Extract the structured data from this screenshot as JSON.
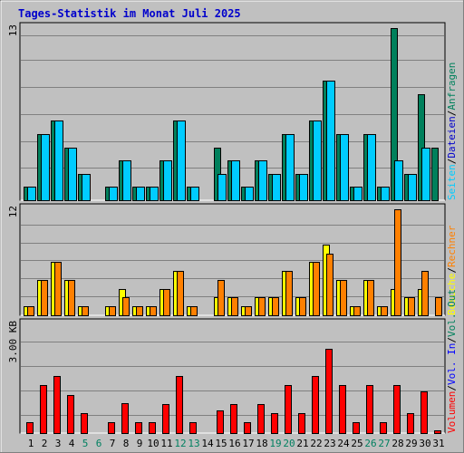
{
  "title": "Tages-Statistik im Monat Juli 2025",
  "colors": {
    "background": "#c0c0c0",
    "title": "#0000cc",
    "grid": "#808080",
    "anfragen": "#00805c",
    "seiten": "#00ccff",
    "dateien": "#0000cc",
    "besuche": "#ffff00",
    "rechner": "#ff8000",
    "volumen": "#ff0000",
    "vol_in": "#0000ff",
    "vol_out": "#00805c",
    "weekend_label": "#008060",
    "weekday_label": "#000000"
  },
  "top_panel": {
    "y_max_label": "13",
    "legend": [
      {
        "text": "Anfragen",
        "color": "#00805c"
      },
      {
        "text": "/",
        "color": "#000000"
      },
      {
        "text": "Dateien",
        "color": "#0000cc"
      },
      {
        "text": "/",
        "color": "#000000"
      },
      {
        "text": "Seiten",
        "color": "#00ccff"
      }
    ]
  },
  "middle_panel": {
    "y_max_label": "12",
    "legend": [
      {
        "text": "Besuche",
        "color": "#ffff00"
      },
      {
        "text": "/",
        "color": "#000000"
      },
      {
        "text": "Rechner",
        "color": "#ff8000"
      }
    ]
  },
  "bottom_panel": {
    "y_max_label": "3.00 KB",
    "legend": [
      {
        "text": "Volumen",
        "color": "#ff0000"
      },
      {
        "text": "/",
        "color": "#000000"
      },
      {
        "text": "Vol. In",
        "color": "#0000ff"
      },
      {
        "text": "/",
        "color": "#000000"
      },
      {
        "text": "Vol. Out",
        "color": "#00805c"
      }
    ]
  },
  "chart_data": [
    {
      "type": "bar",
      "title": "Tages-Statistik im Monat Juli 2025",
      "categories": [
        "1",
        "2",
        "3",
        "4",
        "5",
        "6",
        "7",
        "8",
        "9",
        "10",
        "11",
        "12",
        "13",
        "14",
        "15",
        "16",
        "17",
        "18",
        "19",
        "20",
        "21",
        "22",
        "23",
        "24",
        "25",
        "26",
        "27",
        "28",
        "29",
        "30",
        "31"
      ],
      "weekend_categories": [
        "5",
        "6",
        "12",
        "13",
        "19",
        "20",
        "26",
        "27"
      ],
      "ylim": [
        0,
        13
      ],
      "series": [
        {
          "name": "Anfragen",
          "values": [
            1,
            5,
            6,
            4,
            2,
            0,
            1,
            3,
            1,
            1,
            3,
            6,
            1,
            0,
            4,
            3,
            1,
            3,
            2,
            5,
            2,
            6,
            9,
            5,
            1,
            5,
            1,
            13,
            2,
            8,
            4
          ]
        },
        {
          "name": "Dateien",
          "values": [
            0,
            0,
            0,
            0,
            0,
            0,
            0,
            0,
            0,
            0,
            0,
            0,
            0,
            0,
            0,
            0,
            0,
            0,
            0,
            0,
            0,
            0,
            0,
            0,
            0,
            0,
            0,
            0,
            0,
            0,
            0
          ]
        },
        {
          "name": "Seiten",
          "values": [
            1,
            5,
            6,
            4,
            2,
            0,
            1,
            3,
            1,
            1,
            3,
            6,
            1,
            0,
            2,
            3,
            1,
            3,
            2,
            5,
            2,
            6,
            9,
            5,
            1,
            5,
            1,
            3,
            2,
            4,
            0
          ]
        }
      ]
    },
    {
      "type": "bar",
      "categories": [
        "1",
        "2",
        "3",
        "4",
        "5",
        "6",
        "7",
        "8",
        "9",
        "10",
        "11",
        "12",
        "13",
        "14",
        "15",
        "16",
        "17",
        "18",
        "19",
        "20",
        "21",
        "22",
        "23",
        "24",
        "25",
        "26",
        "27",
        "28",
        "29",
        "30",
        "31"
      ],
      "ylim": [
        0,
        12
      ],
      "series": [
        {
          "name": "Besuche",
          "values": [
            1,
            4,
            6,
            4,
            1,
            0,
            1,
            3,
            1,
            1,
            3,
            5,
            1,
            0,
            2,
            2,
            1,
            2,
            2,
            5,
            2,
            6,
            8,
            4,
            1,
            4,
            1,
            3,
            2,
            3,
            0
          ]
        },
        {
          "name": "Rechner",
          "values": [
            1,
            4,
            6,
            4,
            1,
            0,
            1,
            2,
            1,
            1,
            3,
            5,
            1,
            0,
            4,
            2,
            1,
            2,
            2,
            5,
            2,
            6,
            7,
            4,
            1,
            4,
            1,
            12,
            2,
            5,
            2
          ]
        }
      ]
    },
    {
      "type": "bar",
      "categories": [
        "1",
        "2",
        "3",
        "4",
        "5",
        "6",
        "7",
        "8",
        "9",
        "10",
        "11",
        "12",
        "13",
        "14",
        "15",
        "16",
        "17",
        "18",
        "19",
        "20",
        "21",
        "22",
        "23",
        "24",
        "25",
        "26",
        "27",
        "28",
        "29",
        "30",
        "31"
      ],
      "ylim": [
        0,
        3.6
      ],
      "ylabel": "3.00 KB",
      "series": [
        {
          "name": "Volumen",
          "values": [
            0.36,
            1.6,
            1.9,
            1.25,
            0.66,
            0,
            0.36,
            1.0,
            0.36,
            0.36,
            0.95,
            1.9,
            0.36,
            0,
            0.75,
            0.95,
            0.36,
            0.95,
            0.66,
            1.6,
            0.66,
            1.9,
            2.8,
            1.6,
            0.36,
            1.6,
            0.36,
            1.6,
            0.66,
            1.38,
            0.1
          ]
        },
        {
          "name": "Vol. In",
          "values": [
            0,
            0,
            0,
            0,
            0,
            0,
            0,
            0,
            0,
            0,
            0,
            0,
            0,
            0,
            0,
            0,
            0,
            0,
            0,
            0,
            0,
            0,
            0,
            0,
            0,
            0,
            0,
            0,
            0,
            0,
            0
          ]
        },
        {
          "name": "Vol. Out",
          "values": [
            0,
            0,
            0,
            0,
            0,
            0,
            0,
            0,
            0,
            0,
            0,
            0,
            0,
            0,
            0,
            0,
            0,
            0,
            0,
            0,
            0,
            0,
            0,
            0,
            0,
            0,
            0,
            0,
            0,
            0,
            0
          ]
        }
      ]
    }
  ]
}
